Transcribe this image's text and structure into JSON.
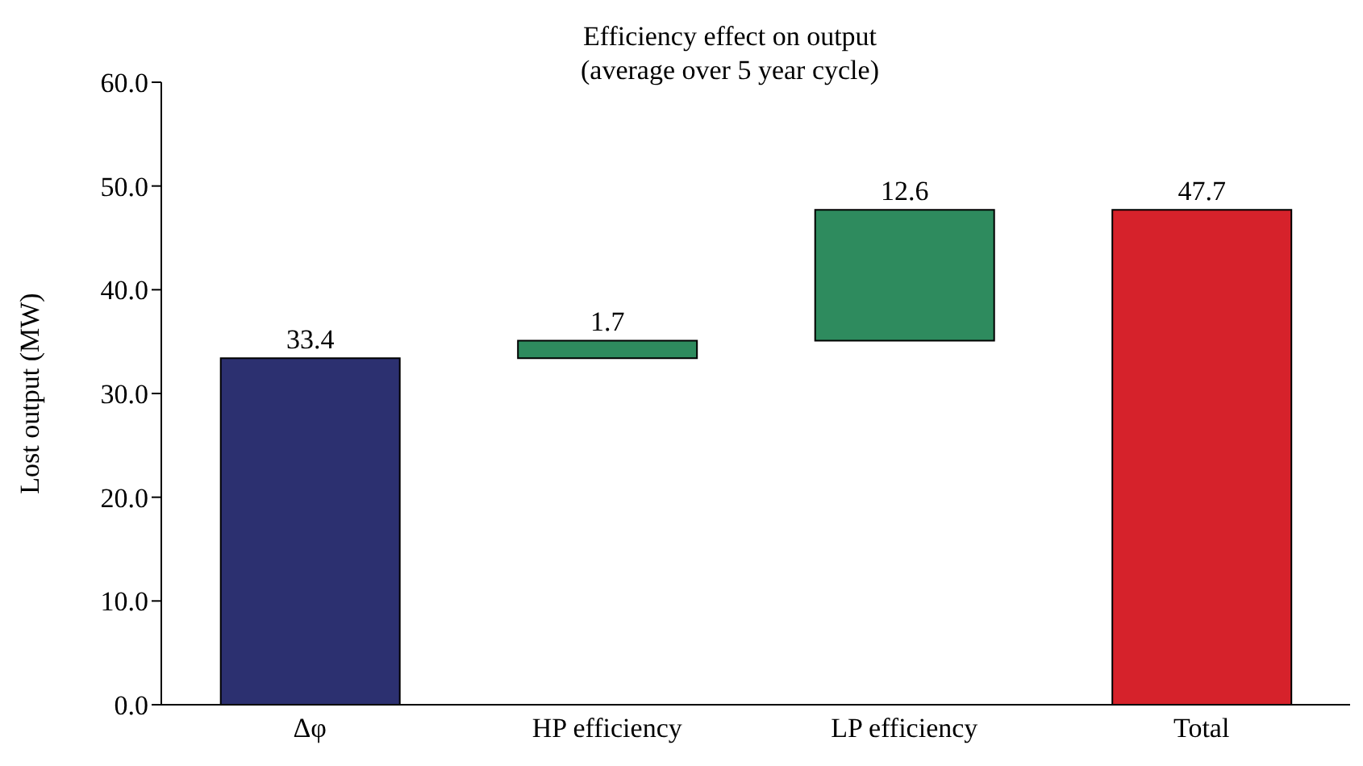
{
  "chart_data": {
    "type": "bar",
    "title": "Efficiency effect on output",
    "subtitle": "(average over 5 year cycle)",
    "ylabel": "Lost output (MW)",
    "categories": [
      "Δφ",
      "HP efficiency",
      "LP efficiency",
      "Total"
    ],
    "values": [
      33.4,
      1.7,
      12.6,
      47.7
    ],
    "base": [
      0,
      33.4,
      35.1,
      0
    ],
    "colors": [
      "#2c3070",
      "#2e8b5e",
      "#2e8b5e",
      "#d6222b"
    ],
    "ylim": [
      0,
      60
    ],
    "yticks": [
      {
        "value": 0,
        "label": "0.0"
      },
      {
        "value": 10,
        "label": "10.0"
      },
      {
        "value": 20,
        "label": "20.0"
      },
      {
        "value": 30,
        "label": "30.0"
      },
      {
        "value": 40,
        "label": "40.0"
      },
      {
        "value": 50,
        "label": "50.0"
      },
      {
        "value": 60,
        "label": "60.0"
      }
    ],
    "data_labels": true,
    "grid": false,
    "legend": false
  }
}
